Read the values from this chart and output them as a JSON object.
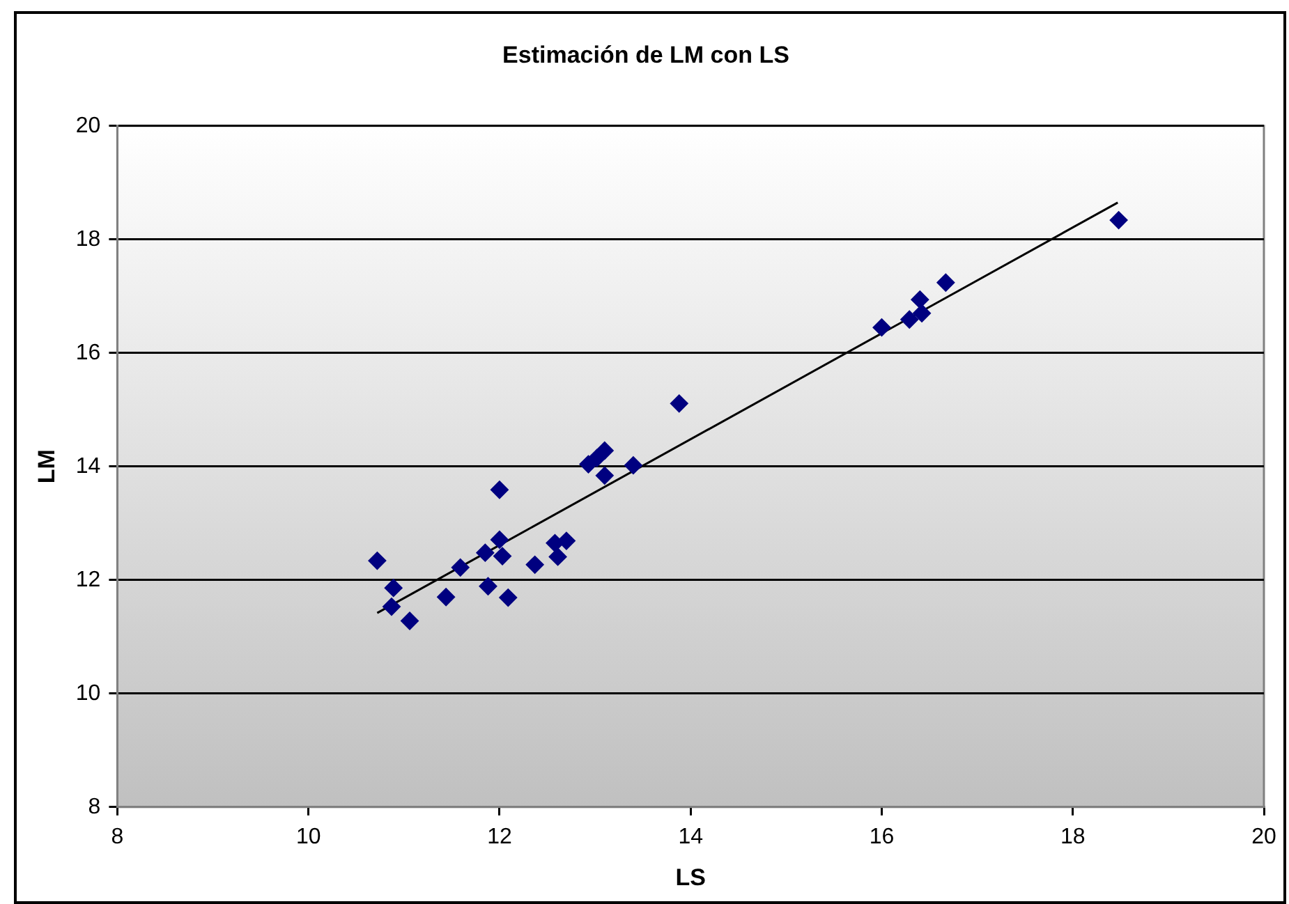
{
  "chart_data": {
    "type": "scatter",
    "title": "Estimación de LM con LS",
    "xlabel": "LS",
    "ylabel": "LM",
    "xlim": [
      8,
      20
    ],
    "xticks": [
      8,
      10,
      12,
      14,
      16,
      18,
      20
    ],
    "ylim": [
      8,
      20
    ],
    "yticks": [
      8,
      10,
      12,
      14,
      16,
      18,
      20
    ],
    "grid": "y",
    "legend": false,
    "marker": "diamond",
    "series": [
      {
        "color": "#000080",
        "x": [
          10.72,
          10.89,
          10.87,
          11.06,
          11.59,
          11.47,
          11.44,
          11.85,
          11.88,
          12.0,
          12.0,
          12.03,
          12.09,
          12.37,
          12.58,
          12.61,
          12.7,
          12.93,
          13.02,
          13.1,
          13.1,
          13.4,
          13.88,
          16.0,
          16.29,
          16.4,
          16.42,
          16.67,
          18.48
        ],
        "values": [
          12.34,
          11.86,
          11.53,
          11.28,
          12.22,
          null,
          11.7,
          12.48,
          11.89,
          13.59,
          12.71,
          12.42,
          11.69,
          12.27,
          12.65,
          12.41,
          12.69,
          14.04,
          14.15,
          14.28,
          13.84,
          14.02,
          15.11,
          16.45,
          16.59,
          16.94,
          16.7,
          17.24,
          18.34
        ]
      },
      {
        "type": "line",
        "color": "#000000",
        "marker": "none",
        "x": [
          10.72,
          18.47
        ],
        "values": [
          11.42,
          18.65
        ]
      }
    ]
  }
}
